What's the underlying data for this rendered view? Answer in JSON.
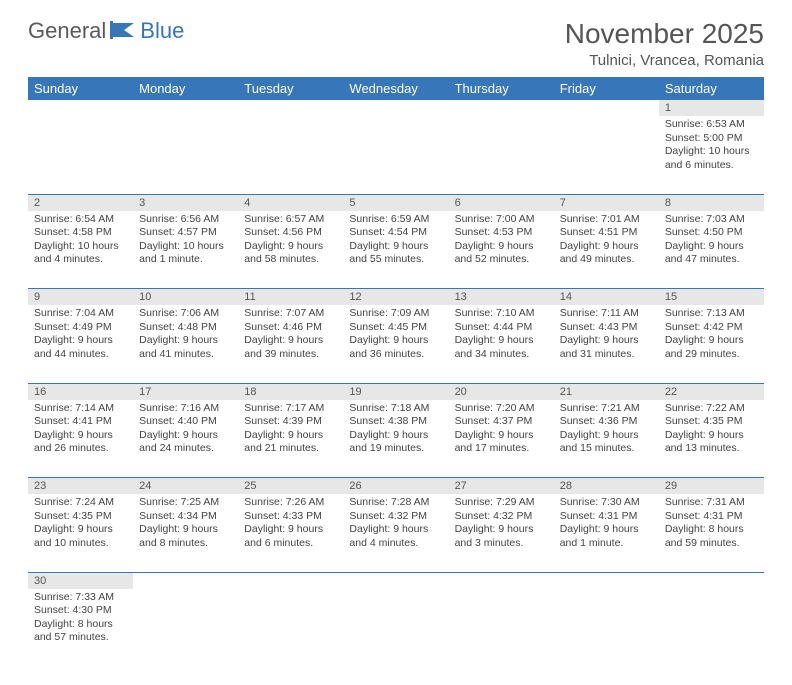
{
  "brand": {
    "part1": "General",
    "part2": "Blue"
  },
  "title": "November 2025",
  "location": "Tulnici, Vrancea, Romania",
  "colors": {
    "header_bg": "#3776b8",
    "header_text": "#ffffff",
    "daynum_bg": "#e7e7e7",
    "border": "#3776b8",
    "text": "#444444",
    "background": "#ffffff"
  },
  "typography": {
    "title_fontsize": 28,
    "location_fontsize": 15,
    "header_fontsize": 13,
    "daynum_fontsize": 11,
    "cell_fontsize": 10.5
  },
  "dayHeaders": [
    "Sunday",
    "Monday",
    "Tuesday",
    "Wednesday",
    "Thursday",
    "Friday",
    "Saturday"
  ],
  "weeks": [
    [
      null,
      null,
      null,
      null,
      null,
      null,
      {
        "n": "1",
        "sr": "Sunrise: 6:53 AM",
        "ss": "Sunset: 5:00 PM",
        "d1": "Daylight: 10 hours",
        "d2": "and 6 minutes."
      }
    ],
    [
      {
        "n": "2",
        "sr": "Sunrise: 6:54 AM",
        "ss": "Sunset: 4:58 PM",
        "d1": "Daylight: 10 hours",
        "d2": "and 4 minutes."
      },
      {
        "n": "3",
        "sr": "Sunrise: 6:56 AM",
        "ss": "Sunset: 4:57 PM",
        "d1": "Daylight: 10 hours",
        "d2": "and 1 minute."
      },
      {
        "n": "4",
        "sr": "Sunrise: 6:57 AM",
        "ss": "Sunset: 4:56 PM",
        "d1": "Daylight: 9 hours",
        "d2": "and 58 minutes."
      },
      {
        "n": "5",
        "sr": "Sunrise: 6:59 AM",
        "ss": "Sunset: 4:54 PM",
        "d1": "Daylight: 9 hours",
        "d2": "and 55 minutes."
      },
      {
        "n": "6",
        "sr": "Sunrise: 7:00 AM",
        "ss": "Sunset: 4:53 PM",
        "d1": "Daylight: 9 hours",
        "d2": "and 52 minutes."
      },
      {
        "n": "7",
        "sr": "Sunrise: 7:01 AM",
        "ss": "Sunset: 4:51 PM",
        "d1": "Daylight: 9 hours",
        "d2": "and 49 minutes."
      },
      {
        "n": "8",
        "sr": "Sunrise: 7:03 AM",
        "ss": "Sunset: 4:50 PM",
        "d1": "Daylight: 9 hours",
        "d2": "and 47 minutes."
      }
    ],
    [
      {
        "n": "9",
        "sr": "Sunrise: 7:04 AM",
        "ss": "Sunset: 4:49 PM",
        "d1": "Daylight: 9 hours",
        "d2": "and 44 minutes."
      },
      {
        "n": "10",
        "sr": "Sunrise: 7:06 AM",
        "ss": "Sunset: 4:48 PM",
        "d1": "Daylight: 9 hours",
        "d2": "and 41 minutes."
      },
      {
        "n": "11",
        "sr": "Sunrise: 7:07 AM",
        "ss": "Sunset: 4:46 PM",
        "d1": "Daylight: 9 hours",
        "d2": "and 39 minutes."
      },
      {
        "n": "12",
        "sr": "Sunrise: 7:09 AM",
        "ss": "Sunset: 4:45 PM",
        "d1": "Daylight: 9 hours",
        "d2": "and 36 minutes."
      },
      {
        "n": "13",
        "sr": "Sunrise: 7:10 AM",
        "ss": "Sunset: 4:44 PM",
        "d1": "Daylight: 9 hours",
        "d2": "and 34 minutes."
      },
      {
        "n": "14",
        "sr": "Sunrise: 7:11 AM",
        "ss": "Sunset: 4:43 PM",
        "d1": "Daylight: 9 hours",
        "d2": "and 31 minutes."
      },
      {
        "n": "15",
        "sr": "Sunrise: 7:13 AM",
        "ss": "Sunset: 4:42 PM",
        "d1": "Daylight: 9 hours",
        "d2": "and 29 minutes."
      }
    ],
    [
      {
        "n": "16",
        "sr": "Sunrise: 7:14 AM",
        "ss": "Sunset: 4:41 PM",
        "d1": "Daylight: 9 hours",
        "d2": "and 26 minutes."
      },
      {
        "n": "17",
        "sr": "Sunrise: 7:16 AM",
        "ss": "Sunset: 4:40 PM",
        "d1": "Daylight: 9 hours",
        "d2": "and 24 minutes."
      },
      {
        "n": "18",
        "sr": "Sunrise: 7:17 AM",
        "ss": "Sunset: 4:39 PM",
        "d1": "Daylight: 9 hours",
        "d2": "and 21 minutes."
      },
      {
        "n": "19",
        "sr": "Sunrise: 7:18 AM",
        "ss": "Sunset: 4:38 PM",
        "d1": "Daylight: 9 hours",
        "d2": "and 19 minutes."
      },
      {
        "n": "20",
        "sr": "Sunrise: 7:20 AM",
        "ss": "Sunset: 4:37 PM",
        "d1": "Daylight: 9 hours",
        "d2": "and 17 minutes."
      },
      {
        "n": "21",
        "sr": "Sunrise: 7:21 AM",
        "ss": "Sunset: 4:36 PM",
        "d1": "Daylight: 9 hours",
        "d2": "and 15 minutes."
      },
      {
        "n": "22",
        "sr": "Sunrise: 7:22 AM",
        "ss": "Sunset: 4:35 PM",
        "d1": "Daylight: 9 hours",
        "d2": "and 13 minutes."
      }
    ],
    [
      {
        "n": "23",
        "sr": "Sunrise: 7:24 AM",
        "ss": "Sunset: 4:35 PM",
        "d1": "Daylight: 9 hours",
        "d2": "and 10 minutes."
      },
      {
        "n": "24",
        "sr": "Sunrise: 7:25 AM",
        "ss": "Sunset: 4:34 PM",
        "d1": "Daylight: 9 hours",
        "d2": "and 8 minutes."
      },
      {
        "n": "25",
        "sr": "Sunrise: 7:26 AM",
        "ss": "Sunset: 4:33 PM",
        "d1": "Daylight: 9 hours",
        "d2": "and 6 minutes."
      },
      {
        "n": "26",
        "sr": "Sunrise: 7:28 AM",
        "ss": "Sunset: 4:32 PM",
        "d1": "Daylight: 9 hours",
        "d2": "and 4 minutes."
      },
      {
        "n": "27",
        "sr": "Sunrise: 7:29 AM",
        "ss": "Sunset: 4:32 PM",
        "d1": "Daylight: 9 hours",
        "d2": "and 3 minutes."
      },
      {
        "n": "28",
        "sr": "Sunrise: 7:30 AM",
        "ss": "Sunset: 4:31 PM",
        "d1": "Daylight: 9 hours",
        "d2": "and 1 minute."
      },
      {
        "n": "29",
        "sr": "Sunrise: 7:31 AM",
        "ss": "Sunset: 4:31 PM",
        "d1": "Daylight: 8 hours",
        "d2": "and 59 minutes."
      }
    ],
    [
      {
        "n": "30",
        "sr": "Sunrise: 7:33 AM",
        "ss": "Sunset: 4:30 PM",
        "d1": "Daylight: 8 hours",
        "d2": "and 57 minutes."
      },
      null,
      null,
      null,
      null,
      null,
      null
    ]
  ]
}
